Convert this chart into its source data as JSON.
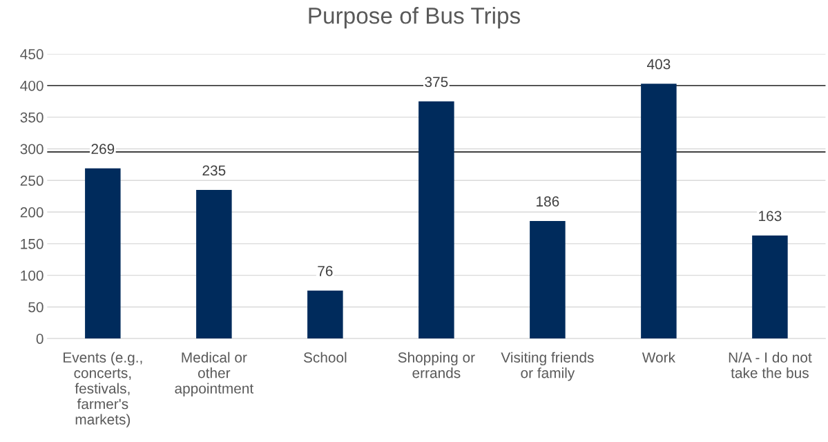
{
  "chart_data": {
    "type": "bar",
    "title": "Purpose of Bus Trips",
    "categories": [
      "Events (e.g.,\nconcerts,\nfestivals,\nfarmer's\nmarkets)",
      "Medical or\nother\nappointment",
      "School",
      "Shopping or\nerrands",
      "Visiting friends\nor family",
      "Work",
      "N/A - I do not\ntake the bus"
    ],
    "values": [
      269,
      235,
      76,
      375,
      186,
      403,
      163
    ],
    "color": "#002b5c",
    "ylim": [
      0,
      450
    ],
    "yticks": [
      0,
      50,
      100,
      150,
      200,
      250,
      300,
      350,
      400,
      450
    ],
    "grid": "y",
    "data_labels": true,
    "legend": false,
    "ref_lines": [
      {
        "axis": "y",
        "value": 400,
        "color": "#000000"
      },
      {
        "axis": "y",
        "value": 295,
        "color": "#000000"
      }
    ]
  }
}
